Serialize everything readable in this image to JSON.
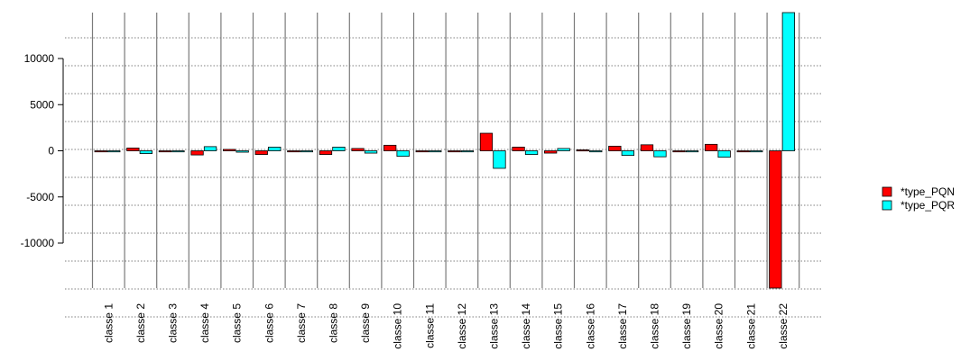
{
  "chart_data": {
    "type": "bar",
    "categories": [
      "classe 1",
      "classe 2",
      "classe 3",
      "classe 4",
      "classe 5",
      "classe 6",
      "classe 7",
      "classe 8",
      "classe 9",
      "classe 10",
      "classe 11",
      "classe 12",
      "classe 13",
      "classe 14",
      "classe 15",
      "classe 16",
      "classe 17",
      "classe 18",
      "classe 19",
      "classe 20",
      "classe 21",
      "classe 22"
    ],
    "series": [
      {
        "name": "*type_PQN",
        "color": "#ff0000",
        "values": [
          0,
          300,
          0,
          -450,
          150,
          -400,
          0,
          -400,
          250,
          600,
          0,
          0,
          1900,
          400,
          -250,
          100,
          500,
          650,
          0,
          700,
          0,
          -15000
        ]
      },
      {
        "name": "*type_PQR",
        "color": "#00ffff",
        "values": [
          0,
          -300,
          0,
          450,
          -150,
          400,
          0,
          400,
          -250,
          -600,
          0,
          0,
          -1900,
          -400,
          250,
          -100,
          -500,
          -650,
          0,
          -700,
          0,
          15000
        ]
      }
    ],
    "yticks": [
      10000,
      5000,
      0,
      -5000,
      -10000
    ],
    "ylim": [
      -15000,
      15000
    ],
    "grid": "horizontal dotted",
    "legend": "right",
    "xlabel": "",
    "ylabel": "",
    "title": ""
  }
}
